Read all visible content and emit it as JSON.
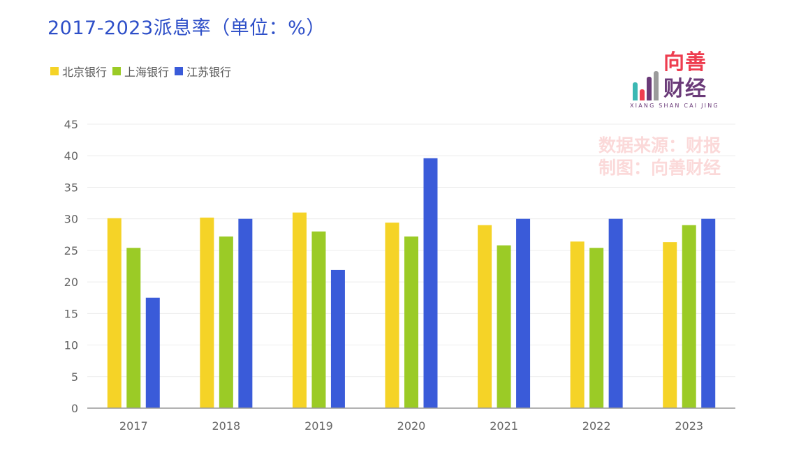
{
  "title": "2017-2023派息率（单位：%）",
  "logo": {
    "top_text": "向善",
    "bottom_text": "财经",
    "sub_text": "XIANG SHAN CAI JING"
  },
  "watermark": {
    "line1": "数据来源：财报",
    "line2": "制图：向善财经"
  },
  "chart_data": {
    "type": "bar",
    "title": "2017-2023派息率（单位：%）",
    "categories": [
      "2017",
      "2018",
      "2019",
      "2020",
      "2021",
      "2022",
      "2023"
    ],
    "series": [
      {
        "name": "北京银行",
        "color": "#f5d327",
        "values": [
          30.1,
          30.2,
          31.0,
          29.4,
          29.0,
          26.4,
          26.3
        ]
      },
      {
        "name": "上海银行",
        "color": "#9bcb26",
        "values": [
          25.4,
          27.2,
          28.0,
          27.2,
          25.8,
          25.4,
          29.0
        ]
      },
      {
        "name": "江苏银行",
        "color": "#3a5bd9",
        "values": [
          17.5,
          30.0,
          21.9,
          39.6,
          30.0,
          30.0,
          30.0
        ]
      }
    ],
    "ylim": [
      0,
      45
    ],
    "yticks": [
      0,
      5,
      10,
      15,
      20,
      25,
      30,
      35,
      40,
      45
    ],
    "grid": true,
    "legend": "top-left"
  }
}
